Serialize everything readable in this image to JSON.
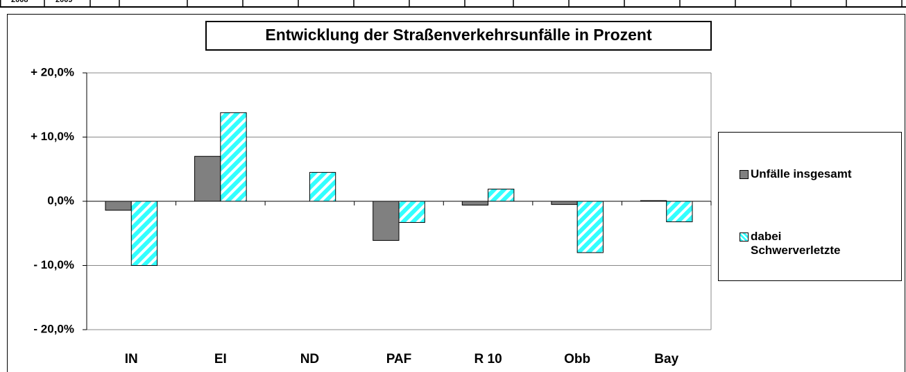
{
  "top_strip": [
    "2008",
    "2009"
  ],
  "chart_data": {
    "type": "bar",
    "title": "Entwicklung der Straßenverkehrsunfälle in Prozent",
    "categories": [
      "IN",
      "EI",
      "ND",
      "PAF",
      "R 10",
      "Obb",
      "Bay"
    ],
    "series": [
      {
        "name": "Unfälle insgesamt",
        "color": "#808080",
        "values": [
          -1.4,
          7.0,
          0,
          -6.1,
          -0.6,
          -0.5,
          0.1
        ]
      },
      {
        "name": "dabei Schwerverletzte",
        "color": "#33ffff",
        "hatch": "diagonal",
        "values": [
          -10.0,
          13.8,
          4.5,
          -3.3,
          1.9,
          -8.0,
          -3.2
        ]
      }
    ],
    "ylim": [
      -20,
      20
    ],
    "yticks": [
      {
        "value": -20,
        "label": "- 20,0%"
      },
      {
        "value": -10,
        "label": "- 10,0%"
      },
      {
        "value": 0,
        "label": "0,0%"
      },
      {
        "value": 10,
        "label": "+ 10,0%"
      },
      {
        "value": 20,
        "label": "+ 20,0%"
      }
    ],
    "grid": true,
    "legend": "right"
  }
}
